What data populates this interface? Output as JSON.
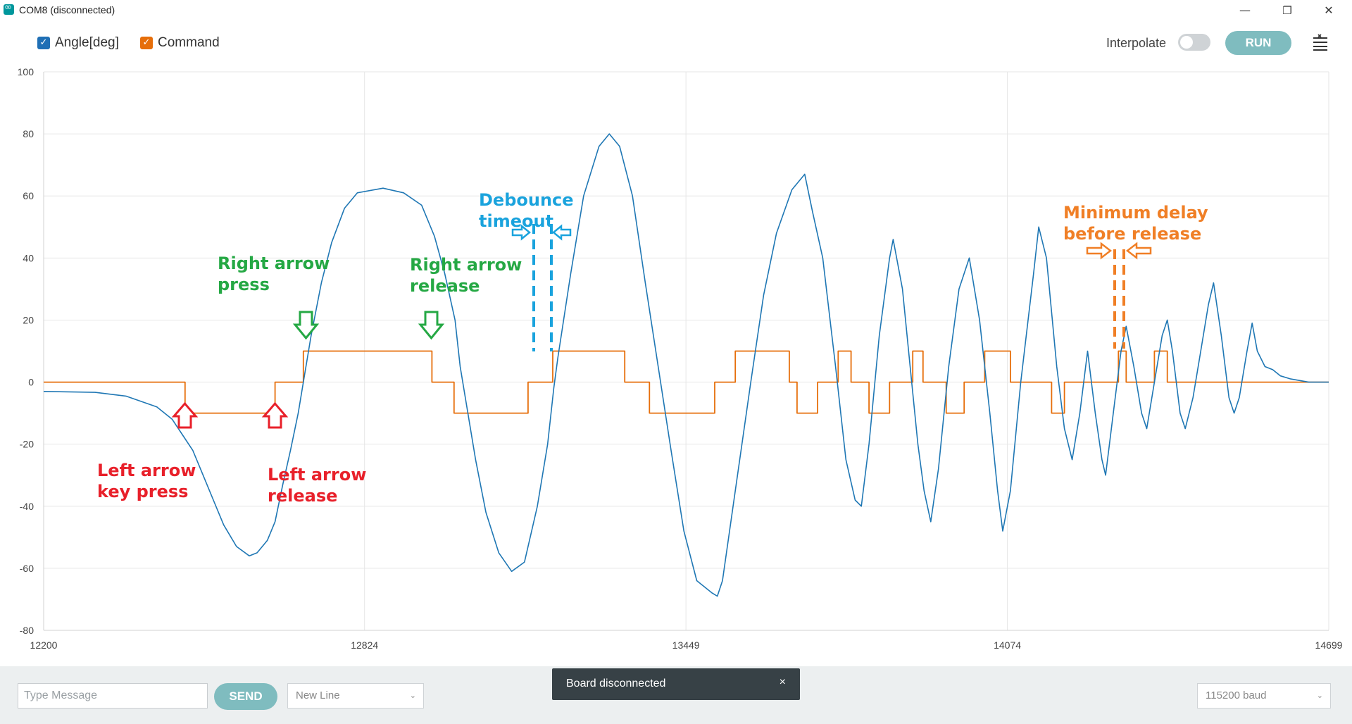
{
  "window": {
    "title": "COM8 (disconnected)",
    "controls": {
      "minimize": "—",
      "maximize": "❐",
      "close": "✕"
    }
  },
  "toolbar": {
    "series_toggles": [
      {
        "label": "Angle[deg]",
        "color": "#1f77b4",
        "checked": true
      },
      {
        "label": "Command",
        "color": "#e66e0a",
        "checked": true
      }
    ],
    "interpolate_label": "Interpolate",
    "interpolate_on": false,
    "run_label": "RUN",
    "clear_icon": "clear-output-icon"
  },
  "chart_data": {
    "type": "line",
    "xlim": [
      12200,
      14699
    ],
    "ylim": [
      -80,
      100
    ],
    "x_ticks": [
      "12200",
      "12824",
      "13449",
      "14074",
      "14699"
    ],
    "y_ticks": [
      "100",
      "80",
      "60",
      "40",
      "20",
      "0",
      "-20",
      "-40",
      "-60",
      "-80"
    ],
    "grid": true,
    "series": [
      {
        "name": "Angle[deg]",
        "color": "#1f77b4",
        "points": [
          [
            12200,
            -3
          ],
          [
            12300,
            -3.3
          ],
          [
            12360,
            -4.5
          ],
          [
            12420,
            -8
          ],
          [
            12450,
            -12
          ],
          [
            12470,
            -17
          ],
          [
            12490,
            -22
          ],
          [
            12510,
            -30
          ],
          [
            12530,
            -38
          ],
          [
            12550,
            -46
          ],
          [
            12575,
            -53
          ],
          [
            12600,
            -56
          ],
          [
            12615,
            -55
          ],
          [
            12635,
            -51
          ],
          [
            12650,
            -45
          ],
          [
            12665,
            -33
          ],
          [
            12680,
            -22
          ],
          [
            12695,
            -10
          ],
          [
            12705,
            0
          ],
          [
            12720,
            15
          ],
          [
            12740,
            32
          ],
          [
            12760,
            45
          ],
          [
            12785,
            56
          ],
          [
            12810,
            61
          ],
          [
            12860,
            62.5
          ],
          [
            12900,
            61
          ],
          [
            12935,
            57
          ],
          [
            12960,
            47
          ],
          [
            12980,
            35
          ],
          [
            13000,
            20
          ],
          [
            13010,
            5
          ],
          [
            13020,
            -5
          ],
          [
            13040,
            -25
          ],
          [
            13060,
            -42
          ],
          [
            13085,
            -55
          ],
          [
            13110,
            -61
          ],
          [
            13135,
            -58
          ],
          [
            13160,
            -40
          ],
          [
            13180,
            -20
          ],
          [
            13192,
            -2
          ],
          [
            13200,
            8
          ],
          [
            13225,
            35
          ],
          [
            13250,
            60
          ],
          [
            13280,
            76
          ],
          [
            13300,
            80
          ],
          [
            13320,
            76
          ],
          [
            13345,
            60
          ],
          [
            13370,
            32
          ],
          [
            13395,
            5
          ],
          [
            13420,
            -22
          ],
          [
            13445,
            -48
          ],
          [
            13470,
            -64
          ],
          [
            13500,
            -68
          ],
          [
            13510,
            -69
          ],
          [
            13520,
            -64
          ],
          [
            13545,
            -35
          ],
          [
            13575,
            0
          ],
          [
            13600,
            28
          ],
          [
            13625,
            48
          ],
          [
            13655,
            62
          ],
          [
            13680,
            67
          ],
          [
            13695,
            55
          ],
          [
            13715,
            40
          ],
          [
            13740,
            5
          ],
          [
            13760,
            -25
          ],
          [
            13778,
            -38
          ],
          [
            13790,
            -40
          ],
          [
            13805,
            -20
          ],
          [
            13825,
            15
          ],
          [
            13845,
            40
          ],
          [
            13852,
            46
          ],
          [
            13870,
            30
          ],
          [
            13885,
            5
          ],
          [
            13900,
            -20
          ],
          [
            13912,
            -35
          ],
          [
            13925,
            -45
          ],
          [
            13940,
            -28
          ],
          [
            13960,
            5
          ],
          [
            13980,
            30
          ],
          [
            14000,
            40
          ],
          [
            14020,
            20
          ],
          [
            14040,
            -10
          ],
          [
            14055,
            -35
          ],
          [
            14065,
            -48
          ],
          [
            14080,
            -35
          ],
          [
            14100,
            0
          ],
          [
            14125,
            35
          ],
          [
            14135,
            50
          ],
          [
            14150,
            40
          ],
          [
            14170,
            5
          ],
          [
            14185,
            -15
          ],
          [
            14200,
            -25
          ],
          [
            14215,
            -10
          ],
          [
            14230,
            10
          ],
          [
            14245,
            -10
          ],
          [
            14258,
            -25
          ],
          [
            14265,
            -30
          ],
          [
            14280,
            -10
          ],
          [
            14295,
            10
          ],
          [
            14305,
            18
          ],
          [
            14320,
            5
          ],
          [
            14335,
            -10
          ],
          [
            14345,
            -15
          ],
          [
            14360,
            0
          ],
          [
            14375,
            15
          ],
          [
            14385,
            20
          ],
          [
            14395,
            10
          ],
          [
            14410,
            -10
          ],
          [
            14420,
            -15
          ],
          [
            14435,
            -5
          ],
          [
            14450,
            10
          ],
          [
            14465,
            25
          ],
          [
            14475,
            32
          ],
          [
            14490,
            15
          ],
          [
            14505,
            -5
          ],
          [
            14515,
            -10
          ],
          [
            14525,
            -5
          ],
          [
            14540,
            10
          ],
          [
            14550,
            19
          ],
          [
            14560,
            10
          ],
          [
            14575,
            5
          ],
          [
            14590,
            4
          ],
          [
            14605,
            2
          ],
          [
            14625,
            1
          ],
          [
            14660,
            0
          ],
          [
            14699,
            0
          ]
        ]
      },
      {
        "name": "Command",
        "color": "#e66e0a",
        "points": [
          [
            12200,
            0
          ],
          [
            12475,
            0
          ],
          [
            12475,
            -10
          ],
          [
            12650,
            -10
          ],
          [
            12650,
            0
          ],
          [
            12705,
            0
          ],
          [
            12705,
            10
          ],
          [
            12955,
            10
          ],
          [
            12955,
            0
          ],
          [
            12998,
            0
          ],
          [
            12998,
            -10
          ],
          [
            13142,
            -10
          ],
          [
            13142,
            0
          ],
          [
            13190,
            0
          ],
          [
            13190,
            10
          ],
          [
            13330,
            10
          ],
          [
            13330,
            0
          ],
          [
            13378,
            0
          ],
          [
            13378,
            -10
          ],
          [
            13505,
            -10
          ],
          [
            13505,
            0
          ],
          [
            13545,
            0
          ],
          [
            13545,
            10
          ],
          [
            13650,
            10
          ],
          [
            13650,
            0
          ],
          [
            13665,
            0
          ],
          [
            13665,
            -10
          ],
          [
            13705,
            -10
          ],
          [
            13705,
            0
          ],
          [
            13745,
            0
          ],
          [
            13745,
            10
          ],
          [
            13770,
            10
          ],
          [
            13770,
            0
          ],
          [
            13805,
            0
          ],
          [
            13805,
            -10
          ],
          [
            13845,
            -10
          ],
          [
            13845,
            0
          ],
          [
            13890,
            0
          ],
          [
            13890,
            10
          ],
          [
            13910,
            10
          ],
          [
            13910,
            0
          ],
          [
            13955,
            0
          ],
          [
            13955,
            -10
          ],
          [
            13990,
            -10
          ],
          [
            13990,
            0
          ],
          [
            14030,
            0
          ],
          [
            14030,
            10
          ],
          [
            14080,
            10
          ],
          [
            14080,
            0
          ],
          [
            14160,
            0
          ],
          [
            14160,
            -10
          ],
          [
            14185,
            -10
          ],
          [
            14185,
            0
          ],
          [
            14290,
            0
          ],
          [
            14290,
            10
          ],
          [
            14305,
            10
          ],
          [
            14305,
            0
          ],
          [
            14360,
            0
          ],
          [
            14360,
            10
          ],
          [
            14385,
            10
          ],
          [
            14385,
            0
          ],
          [
            14699,
            0
          ]
        ]
      }
    ],
    "annotations": [
      {
        "text": [
          "Left arrow",
          "key press"
        ],
        "color": "#e8202a"
      },
      {
        "text": [
          "Left arrow",
          "release"
        ],
        "color": "#e8202a"
      },
      {
        "text": [
          "Right arrow",
          "press"
        ],
        "color": "#25a844"
      },
      {
        "text": [
          "Right arrow",
          "release"
        ],
        "color": "#25a844"
      },
      {
        "text": [
          "Debounce",
          "timeout"
        ],
        "color": "#1aa3dd"
      },
      {
        "text": [
          "Minimum delay",
          "before release"
        ],
        "color": "#f07f26"
      }
    ]
  },
  "bottom": {
    "message_placeholder": "Type Message",
    "send_label": "SEND",
    "line_ending": "New Line",
    "baud": "115200 baud"
  },
  "toast": {
    "text": "Board disconnected",
    "close": "×"
  }
}
